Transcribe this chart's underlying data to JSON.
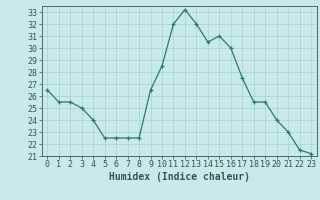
{
  "x": [
    0,
    1,
    2,
    3,
    4,
    5,
    6,
    7,
    8,
    9,
    10,
    11,
    12,
    13,
    14,
    15,
    16,
    17,
    18,
    19,
    20,
    21,
    22,
    23
  ],
  "y": [
    26.5,
    25.5,
    25.5,
    25.0,
    24.0,
    22.5,
    22.5,
    22.5,
    22.5,
    26.5,
    28.5,
    32.0,
    33.2,
    32.0,
    30.5,
    31.0,
    30.0,
    27.5,
    25.5,
    25.5,
    24.0,
    23.0,
    21.5,
    21.2
  ],
  "xlabel": "Humidex (Indice chaleur)",
  "ylim": [
    21,
    33.5
  ],
  "xlim": [
    -0.5,
    23.5
  ],
  "yticks": [
    21,
    22,
    23,
    24,
    25,
    26,
    27,
    28,
    29,
    30,
    31,
    32,
    33
  ],
  "xticks": [
    0,
    1,
    2,
    3,
    4,
    5,
    6,
    7,
    8,
    9,
    10,
    11,
    12,
    13,
    14,
    15,
    16,
    17,
    18,
    19,
    20,
    21,
    22,
    23
  ],
  "line_color": "#2d7a6b",
  "marker": "+",
  "bg_color": "#c8eaea",
  "grid_color": "#9ecece",
  "tick_color": "#2d5a50",
  "label_color": "#2d5a50",
  "xlabel_fontsize": 7,
  "tick_fontsize": 6
}
